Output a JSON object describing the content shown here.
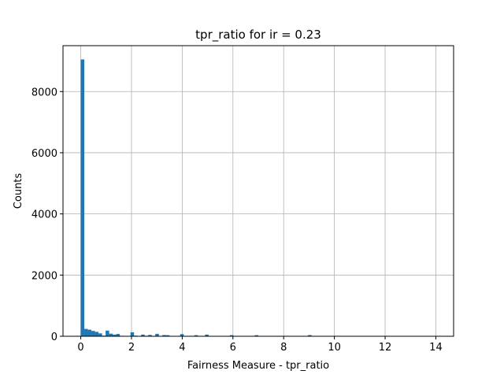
{
  "chart_data": {
    "type": "bar",
    "title": "tpr_ratio for ir = 0.23",
    "xlabel": "Fairness Measure - tpr_ratio",
    "ylabel": "Counts",
    "xlim": [
      -0.7,
      14.7
    ],
    "ylim": [
      0,
      9500
    ],
    "grid": true,
    "bar_color": "#1f77b4",
    "bin_width": 0.14,
    "x_ticks": [
      0,
      2,
      4,
      6,
      8,
      10,
      12,
      14
    ],
    "y_ticks": [
      0,
      2000,
      4000,
      6000,
      8000
    ],
    "bins": [
      {
        "x0": 0.0,
        "count": 9050
      },
      {
        "x0": 0.14,
        "count": 240
      },
      {
        "x0": 0.28,
        "count": 215
      },
      {
        "x0": 0.42,
        "count": 175
      },
      {
        "x0": 0.56,
        "count": 145
      },
      {
        "x0": 0.7,
        "count": 95
      },
      {
        "x0": 0.84,
        "count": 20
      },
      {
        "x0": 0.98,
        "count": 185
      },
      {
        "x0": 1.12,
        "count": 85
      },
      {
        "x0": 1.26,
        "count": 55
      },
      {
        "x0": 1.4,
        "count": 75
      },
      {
        "x0": 1.54,
        "count": 15
      },
      {
        "x0": 1.96,
        "count": 130
      },
      {
        "x0": 2.1,
        "count": 20
      },
      {
        "x0": 2.38,
        "count": 55
      },
      {
        "x0": 2.52,
        "count": 15
      },
      {
        "x0": 2.66,
        "count": 45
      },
      {
        "x0": 2.94,
        "count": 80
      },
      {
        "x0": 3.22,
        "count": 40
      },
      {
        "x0": 3.36,
        "count": 35
      },
      {
        "x0": 3.92,
        "count": 70
      },
      {
        "x0": 4.48,
        "count": 35
      },
      {
        "x0": 4.9,
        "count": 55
      },
      {
        "x0": 5.88,
        "count": 35
      },
      {
        "x0": 6.86,
        "count": 35
      },
      {
        "x0": 8.96,
        "count": 40
      }
    ]
  }
}
